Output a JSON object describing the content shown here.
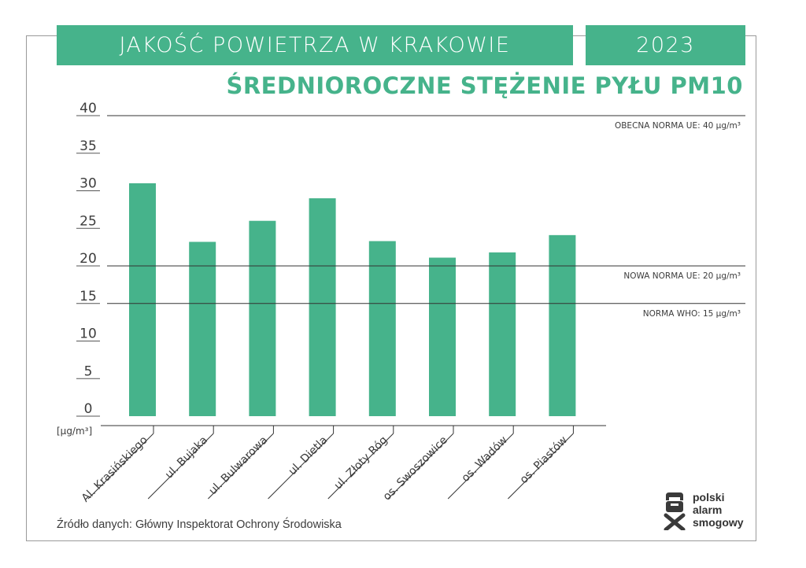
{
  "header": {
    "title": "JAKOŚĆ POWIETRZA W KRAKOWIE",
    "year": "2023",
    "subtitle": "ŚREDNIOROCZNE STĘŻENIE PYŁU PM10"
  },
  "chart_data": {
    "type": "bar",
    "categories": [
      "Al. Krasińskiego",
      "ul. Bujaka",
      "ul. Bulwarowa",
      "ul. Dietla",
      "ul. Złoty Róg",
      "os. Swoszowice",
      "os. Wadów",
      "os. Piastów"
    ],
    "values": [
      31,
      23.2,
      26,
      29,
      23.3,
      21.1,
      21.8,
      24.1
    ],
    "ylim": [
      0,
      40
    ],
    "yticks": [
      0,
      5,
      10,
      15,
      20,
      25,
      30,
      35,
      40
    ],
    "yunit": "[µg/m³]",
    "color": "#46b38b",
    "reference_lines": [
      {
        "value": 40,
        "label": "OBECNA NORMA UE: 40 µg/m³"
      },
      {
        "value": 20,
        "label": "NOWA NORMA UE: 20 µg/m³"
      },
      {
        "value": 15,
        "label": "NORMA WHO: 15 µg/m³"
      }
    ],
    "grid": false
  },
  "footer": {
    "source": "Źródło danych: Główny Inspektorat Ochrony Środowiska"
  },
  "logo": {
    "icon": "smog-mask-icon",
    "lines": [
      "polski",
      "alarm",
      "smogowy"
    ]
  }
}
